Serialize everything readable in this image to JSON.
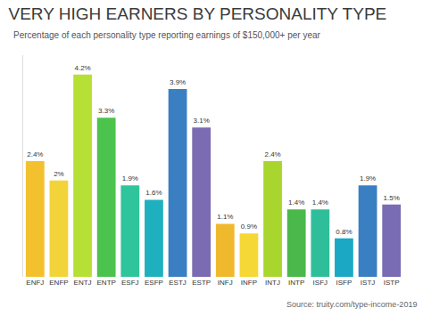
{
  "chart_data": {
    "type": "bar",
    "title": "VERY HIGH EARNERS BY PERSONALITY TYPE",
    "subtitle": "Percentage of each personality type reporting earnings of $150,000+ per year",
    "annotations": [
      "Source: truity.com/type-income-2019"
    ],
    "categories": [
      "ENFJ",
      "ENFP",
      "ENTJ",
      "ENTP",
      "ESFJ",
      "ESFP",
      "ESTJ",
      "ESTP",
      "INFJ",
      "INFP",
      "INTJ",
      "INTP",
      "ISFJ",
      "ISFP",
      "ISTJ",
      "ISTP"
    ],
    "values": [
      2.4,
      2,
      4.2,
      3.3,
      1.9,
      1.6,
      3.9,
      3.1,
      1.1,
      0.9,
      2.4,
      1.4,
      1.4,
      0.8,
      1.9,
      1.5
    ],
    "value_labels": [
      "2.4%",
      "2%",
      "4.2%",
      "3.3%",
      "1.9%",
      "1.6%",
      "3.9%",
      "3.1%",
      "1.1%",
      "0.9%",
      "2.4%",
      "1.4%",
      "1.4%",
      "0.8%",
      "1.9%",
      "1.5%"
    ],
    "colors": [
      "#f4c12e",
      "#f2d43a",
      "#b7e036",
      "#4cc34c",
      "#2ec49c",
      "#1fb0bf",
      "#3a7fc1",
      "#7b6bb2",
      "#f0b92d",
      "#f5d835",
      "#a8d62e",
      "#4ab84a",
      "#2ebf9a",
      "#1aa8c4",
      "#3a7fc1",
      "#7a6bb5"
    ],
    "ylim": [
      0,
      4.6
    ],
    "data_labels": true,
    "tick_labels": "x",
    "grid": false
  }
}
